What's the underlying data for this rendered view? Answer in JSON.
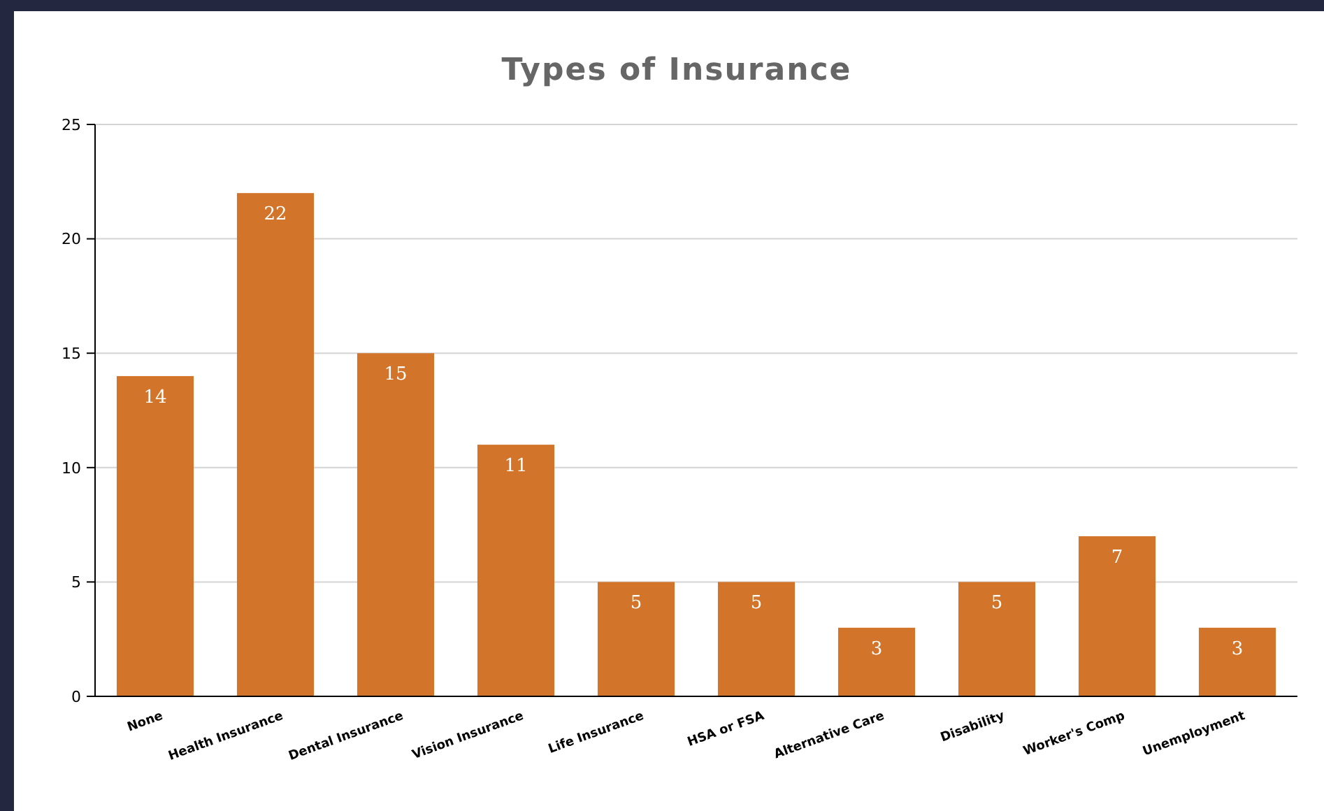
{
  "chart_data": {
    "type": "bar",
    "title": "Types of Insurance",
    "categories": [
      "None",
      "Health Insurance",
      "Dental Insurance",
      "Vision Insurance",
      "Life Insurance",
      "HSA or FSA",
      "Alternative Care",
      "Disability",
      "Worker's Comp",
      "Unemployment"
    ],
    "values": [
      14,
      22,
      15,
      11,
      5,
      5,
      3,
      5,
      7,
      3
    ],
    "color": "#d2742a",
    "ylim": [
      0,
      25
    ],
    "yticks": [
      0,
      5,
      10,
      15,
      20,
      25
    ],
    "grid": "y",
    "data_labels": true
  }
}
